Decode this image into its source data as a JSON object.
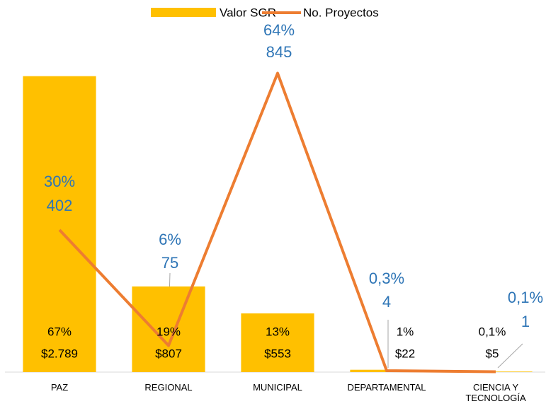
{
  "chart_data": {
    "type": "bar",
    "categories": [
      "PAZ",
      "REGIONAL",
      "MUNICIPAL",
      "DEPARTAMENTAL",
      "CIENCIA Y TECNOLOGÍA"
    ],
    "series": [
      {
        "name": "Valor SGR",
        "type": "bar",
        "color": "#FFC000",
        "values": [
          2789,
          807,
          553,
          22,
          5
        ],
        "value_labels": [
          "$2.789",
          "$807",
          "$553",
          "$22",
          "$5"
        ],
        "shares": [
          "67%",
          "19%",
          "13%",
          "1%",
          "0,1%"
        ]
      },
      {
        "name": "No. Proyectos",
        "type": "line",
        "axis": "y2",
        "color": "#ED7D31",
        "values": [
          402,
          75,
          845,
          4,
          1
        ],
        "shares": [
          "30%",
          "6%",
          "64%",
          "0,3%",
          "0,1%"
        ]
      }
    ],
    "ylim": [
      0,
      3000
    ],
    "y2lim": [
      0,
      900
    ],
    "legend": "top"
  }
}
